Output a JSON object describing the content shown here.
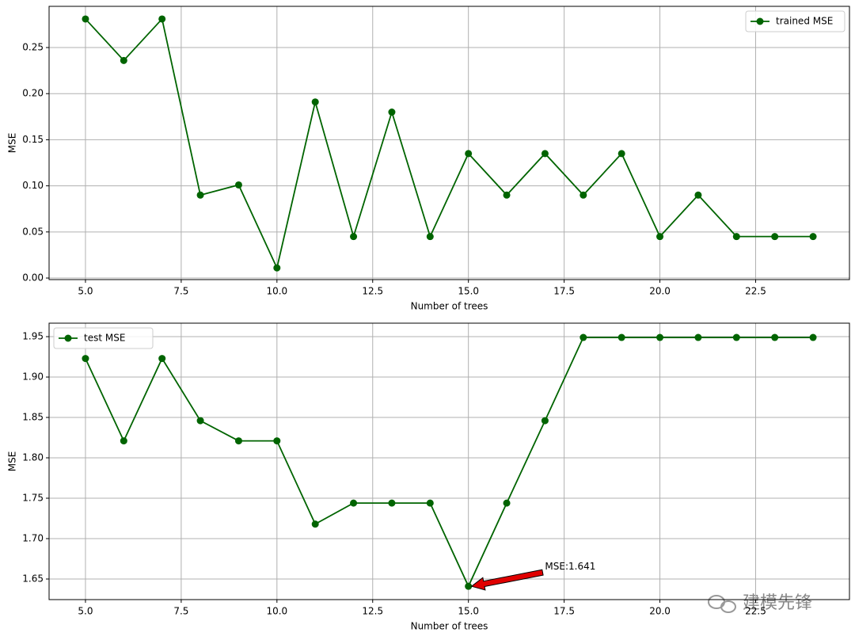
{
  "chart_data": [
    {
      "type": "line",
      "xlabel": "Number of trees",
      "ylabel": "MSE",
      "x": [
        5,
        6,
        7,
        8,
        9,
        10,
        11,
        12,
        13,
        14,
        15,
        16,
        17,
        18,
        19,
        20,
        21,
        22,
        23,
        24
      ],
      "series": [
        {
          "name": "trained MSE",
          "color": "#006400",
          "values": [
            0.281,
            0.236,
            0.281,
            0.09,
            0.101,
            0.011,
            0.191,
            0.045,
            0.18,
            0.045,
            0.135,
            0.09,
            0.135,
            0.09,
            0.135,
            0.045,
            0.09,
            0.045,
            0.045,
            0.045
          ]
        }
      ],
      "xlim": [
        4.05,
        24.95
      ],
      "xticks": [
        {
          "value": 5,
          "label": "5.0"
        },
        {
          "value": 7.5,
          "label": "7.5"
        },
        {
          "value": 10,
          "label": "10.0"
        },
        {
          "value": 12.5,
          "label": "12.5"
        },
        {
          "value": 15,
          "label": "15.0"
        },
        {
          "value": 17.5,
          "label": "17.5"
        },
        {
          "value": 20,
          "label": "20.0"
        },
        {
          "value": 22.5,
          "label": "22.5"
        }
      ],
      "ylim": [
        -0.0017,
        0.2947
      ],
      "yticks": [
        {
          "value": 0,
          "label": "0.00"
        },
        0.05,
        {
          "value": 0.1,
          "label": "0.10"
        },
        0.15,
        {
          "value": 0.2,
          "label": "0.20"
        },
        0.25
      ],
      "grid": true,
      "legend": "upper right"
    },
    {
      "type": "line",
      "xlabel": "Number of trees",
      "ylabel": "MSE",
      "x": [
        5,
        6,
        7,
        8,
        9,
        10,
        11,
        12,
        13,
        14,
        15,
        16,
        17,
        18,
        19,
        20,
        21,
        22,
        23,
        24
      ],
      "series": [
        {
          "name": "test MSE",
          "color": "#006400",
          "values": [
            1.923,
            1.821,
            1.923,
            1.846,
            1.821,
            1.821,
            1.718,
            1.744,
            1.744,
            1.744,
            1.641,
            1.744,
            1.846,
            1.949,
            1.949,
            1.949,
            1.949,
            1.949,
            1.949,
            1.949
          ]
        }
      ],
      "xlim": [
        4.05,
        24.95
      ],
      "xticks": [
        {
          "value": 5,
          "label": "5.0"
        },
        {
          "value": 7.5,
          "label": "7.5"
        },
        {
          "value": 10,
          "label": "10.0"
        },
        {
          "value": 12.5,
          "label": "12.5"
        },
        {
          "value": 15,
          "label": "15.0"
        },
        {
          "value": 17.5,
          "label": "17.5"
        },
        {
          "value": 20,
          "label": "20.0"
        },
        {
          "value": 22.5,
          "label": "22.5"
        }
      ],
      "ylim": [
        1.6245,
        1.9667
      ],
      "yticks": [
        1.65,
        {
          "value": 1.7,
          "label": "1.70"
        },
        1.75,
        {
          "value": 1.8,
          "label": "1.80"
        },
        1.85,
        {
          "value": 1.9,
          "label": "1.90"
        },
        1.95
      ],
      "grid": true,
      "legend": "upper left",
      "annotations": [
        {
          "text": "MSE:1.641",
          "xy": [
            15,
            1.641
          ],
          "xytext": [
            17,
            1.665
          ],
          "arrow_color": "#e00000"
        }
      ]
    }
  ],
  "watermark": "建模先锋"
}
